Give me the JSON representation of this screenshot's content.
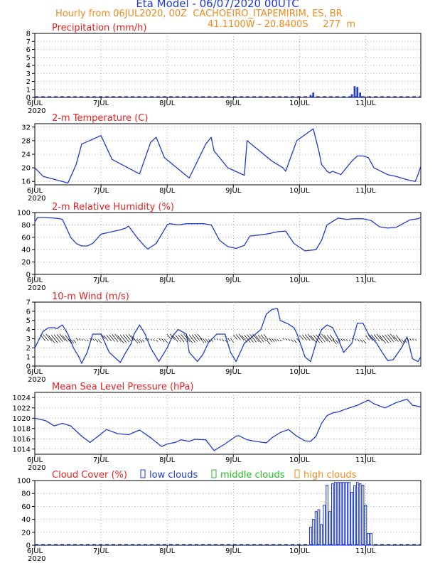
{
  "header": {
    "title": "Eta Model - 06/07/2020 00UTC",
    "line2": "Hourly from 06JUL2020, 00Z  CACHOEIRO_ITAPEMIRIM, ES, BR",
    "line3": "41.1100W - 20.8400S     277  m"
  },
  "colors": {
    "title": "#1f3bd0",
    "header_text": "#f08a1c",
    "panel_title": "#e82020",
    "series": "#1f3bd0",
    "low_clouds": "#1f3bd0",
    "middle_clouds": "#22c022",
    "high_clouds": "#f08a1c"
  },
  "x_axis": {
    "tick_labels": [
      "6JUL",
      "7JUL",
      "8JUL",
      "9JUL",
      "10JUL",
      "11JUL"
    ],
    "year_label": "2020"
  },
  "chart_data": [
    {
      "type": "bar",
      "title": "Precipitation (mm/h)",
      "ylim": [
        0,
        8
      ],
      "yticks": [
        0,
        1,
        2,
        3,
        4,
        5,
        6,
        7,
        8
      ],
      "bars": [
        {
          "x": 100.0,
          "value": 0.3
        },
        {
          "x": 101.0,
          "value": 0.6
        },
        {
          "x": 115.0,
          "value": 0.4
        },
        {
          "x": 116.0,
          "value": 1.4
        },
        {
          "x": 117.0,
          "value": 1.3
        },
        {
          "x": 118.0,
          "value": 0.6
        }
      ]
    },
    {
      "type": "line",
      "title": "2-m Temperature (C)",
      "ylim": [
        15,
        33
      ],
      "yticks": [
        16,
        20,
        24,
        28,
        32
      ],
      "x": [
        0,
        3,
        10,
        12,
        15,
        17,
        24,
        28,
        38,
        42,
        44,
        47,
        56,
        62,
        64,
        65,
        70,
        76,
        77,
        86,
        90,
        91,
        95,
        101,
        103,
        104,
        105,
        106,
        107,
        108,
        111,
        115,
        117,
        119,
        121,
        123,
        128,
        131,
        135,
        138,
        139,
        140
      ],
      "values": [
        20,
        17.5,
        16,
        15.5,
        21,
        27,
        29.5,
        22.5,
        18.2,
        27.5,
        29,
        23,
        17,
        27,
        29,
        25,
        20,
        17.8,
        28,
        22,
        20,
        19,
        28,
        31.5,
        25,
        21,
        20,
        19,
        18.5,
        19,
        18,
        22,
        23.5,
        23.5,
        23,
        20,
        18,
        17.5,
        16.5,
        16,
        18,
        20.5
      ]
    },
    {
      "type": "line",
      "title": "2-m Relative Humidity (%)",
      "ylim": [
        0,
        100
      ],
      "yticks": [
        0,
        20,
        40,
        60,
        80,
        100
      ],
      "x": [
        0,
        1,
        4,
        7,
        9,
        10,
        12,
        13,
        15,
        17,
        19,
        21,
        24,
        27,
        31,
        33,
        34,
        37,
        40,
        41,
        44,
        48,
        49,
        52,
        55,
        58,
        61,
        64,
        67,
        70,
        73,
        76,
        78,
        80,
        82,
        85,
        88,
        91,
        94,
        98,
        102,
        104,
        106,
        110,
        113,
        116,
        119,
        122,
        125,
        128,
        131,
        136,
        139,
        140
      ],
      "values": [
        85,
        92,
        92,
        91,
        90,
        89,
        70,
        60,
        50,
        46,
        46,
        50,
        65,
        68,
        72,
        75,
        78,
        60,
        45,
        41,
        50,
        80,
        82,
        80,
        82,
        82,
        82,
        80,
        55,
        45,
        42,
        47,
        62,
        63,
        64,
        66,
        69,
        70,
        50,
        38,
        40,
        55,
        80,
        91,
        89,
        90,
        90,
        87,
        77,
        75,
        76,
        88,
        90,
        92
      ]
    },
    {
      "type": "line",
      "title": "10-m Wind (m/s)",
      "ylim": [
        0,
        7
      ],
      "yticks": [
        0,
        1,
        2,
        3,
        4,
        5,
        6,
        7
      ],
      "x": [
        0,
        3,
        5,
        7,
        8,
        10,
        12,
        14,
        16,
        17,
        19,
        21,
        24,
        27,
        31,
        33,
        35,
        36,
        38,
        40,
        42,
        45,
        48,
        50,
        52,
        55,
        56,
        59,
        61,
        63,
        66,
        69,
        71,
        73,
        76,
        80,
        82,
        84,
        86,
        88,
        89,
        92,
        94,
        95,
        98,
        100,
        102,
        104,
        106,
        108,
        110,
        112,
        115,
        117,
        119,
        121,
        124,
        126,
        128,
        130,
        133,
        135,
        137,
        139,
        140
      ],
      "values": [
        2,
        3.8,
        4.2,
        4.2,
        4.1,
        4.5,
        3.5,
        2,
        1,
        0.3,
        1.5,
        3.5,
        3.5,
        1.5,
        0.4,
        1.5,
        2.5,
        3.5,
        4.5,
        3.5,
        2,
        0.5,
        2,
        3.3,
        4,
        3.5,
        1.5,
        0.5,
        1.3,
        2.6,
        3.5,
        3.5,
        1.5,
        0.5,
        2.5,
        3.5,
        4,
        5.7,
        6.2,
        6.3,
        5,
        4.6,
        4.2,
        3.6,
        1,
        0.5,
        2.5,
        4,
        4.5,
        4.2,
        3,
        1.5,
        2.5,
        4.7,
        4.7,
        3.5,
        2.5,
        1.5,
        0.6,
        0.7,
        2,
        3.2,
        0.8,
        0.5,
        1
      ]
    },
    {
      "type": "line",
      "title": "Mean Sea Level Pressure (hPa)",
      "ylim": [
        1013,
        1025
      ],
      "yticks": [
        1014,
        1016,
        1018,
        1020,
        1022,
        1024
      ],
      "x": [
        0,
        4,
        7,
        10,
        13,
        17,
        20,
        23,
        26,
        30,
        34,
        38,
        42,
        46,
        48,
        51,
        53,
        56,
        58,
        62,
        65,
        69,
        73,
        74,
        77,
        80,
        84,
        86,
        89,
        92,
        95,
        98,
        100,
        102,
        104,
        106,
        108,
        110,
        113,
        117,
        121,
        123,
        127,
        131,
        135,
        137,
        140
      ],
      "values": [
        1020,
        1019.5,
        1018.5,
        1019,
        1018.5,
        1016.5,
        1015.3,
        1016.5,
        1017.8,
        1017,
        1016.8,
        1017.7,
        1016.2,
        1014.5,
        1015,
        1015.3,
        1015.8,
        1015.5,
        1015.9,
        1015.8,
        1013.7,
        1015,
        1016.5,
        1016.6,
        1015.8,
        1015.5,
        1015.2,
        1016.2,
        1017.2,
        1017.8,
        1016.5,
        1015.6,
        1015.5,
        1016.5,
        1019,
        1020.5,
        1021,
        1021.2,
        1021.8,
        1022.5,
        1023.5,
        1022.8,
        1022,
        1023,
        1023.7,
        1022.5,
        1022.2
      ]
    },
    {
      "type": "bar",
      "title": "Cloud Cover (%)",
      "ylim": [
        0,
        100
      ],
      "yticks": [
        0,
        20,
        40,
        60,
        80,
        100
      ],
      "legend": [
        "low clouds",
        "middle clouds",
        "high clouds"
      ],
      "bars": [
        {
          "x": 100.0,
          "value": 28
        },
        {
          "x": 101.0,
          "value": 40
        },
        {
          "x": 102.0,
          "value": 52
        },
        {
          "x": 103.0,
          "value": 55
        },
        {
          "x": 104.0,
          "value": 32
        },
        {
          "x": 105.0,
          "value": 62
        },
        {
          "x": 106.0,
          "value": 93
        },
        {
          "x": 107.0,
          "value": 52
        },
        {
          "x": 108.0,
          "value": 95
        },
        {
          "x": 109.0,
          "value": 97
        },
        {
          "x": 110.0,
          "value": 97
        },
        {
          "x": 111.0,
          "value": 97
        },
        {
          "x": 112.0,
          "value": 97
        },
        {
          "x": 113.0,
          "value": 97
        },
        {
          "x": 114.0,
          "value": 97
        },
        {
          "x": 115.0,
          "value": 82
        },
        {
          "x": 116.0,
          "value": 92
        },
        {
          "x": 117.0,
          "value": 97
        },
        {
          "x": 118.0,
          "value": 95
        },
        {
          "x": 119.0,
          "value": 93
        },
        {
          "x": 120.0,
          "value": 62
        },
        {
          "x": 121.0,
          "value": 18
        },
        {
          "x": 122.0,
          "value": 18
        }
      ]
    }
  ]
}
